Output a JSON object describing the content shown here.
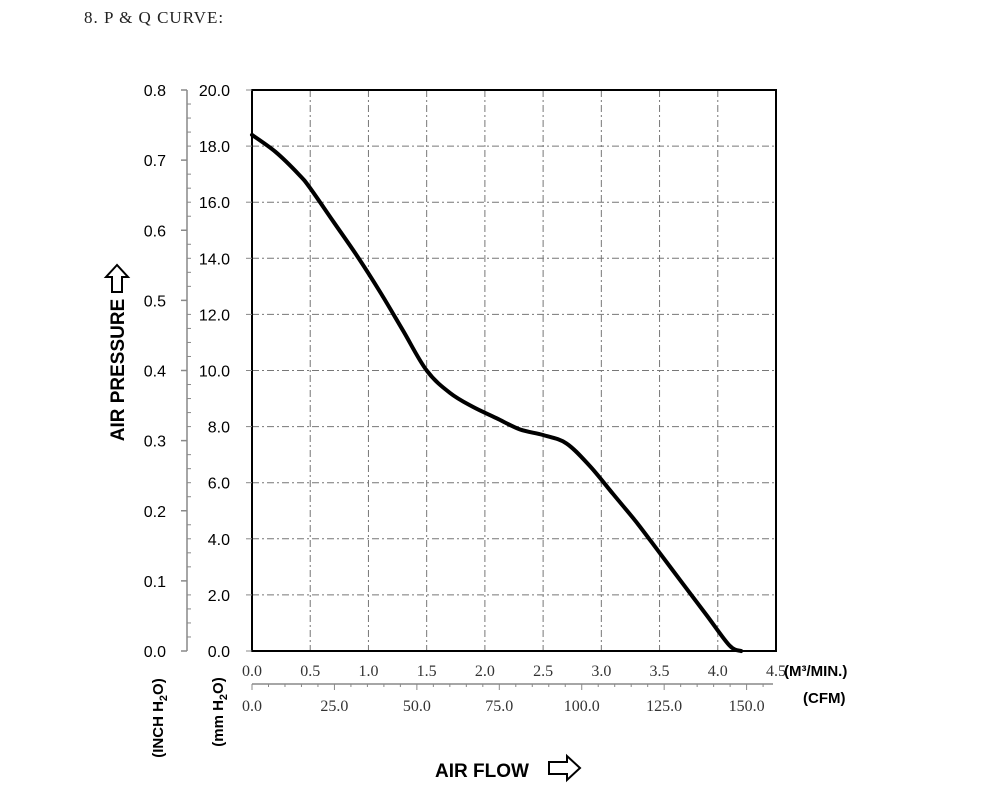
{
  "section_title": "8. P & Q CURVE:",
  "chart_data": {
    "type": "line",
    "x_label": "AIR FLOW",
    "x_unit_primary": "(M³/MIN.)",
    "x_unit_secondary": "(CFM)",
    "y_label": "AIR PRESSURE",
    "y_unit_primary": "(mm H2O)",
    "y_unit_secondary": "(INCH H2O)",
    "xlim": [
      0,
      4.5
    ],
    "ylim": [
      0,
      20
    ],
    "grid": true,
    "x_ticks": [
      "0.0",
      "0.5",
      "1.0",
      "1.5",
      "2.0",
      "2.5",
      "3.0",
      "3.5",
      "4.0",
      "4.5"
    ],
    "x2_ticks": [
      "0.0",
      "25.0",
      "50.0",
      "75.0",
      "100.0",
      "125.0",
      "150.0"
    ],
    "y_ticks": [
      "0.0",
      "2.0",
      "4.0",
      "6.0",
      "8.0",
      "10.0",
      "12.0",
      "14.0",
      "16.0",
      "18.0",
      "20.0"
    ],
    "y2_ticks": [
      "0.0",
      "0.1",
      "0.2",
      "0.3",
      "0.4",
      "0.5",
      "0.6",
      "0.7",
      "0.8"
    ],
    "series": [
      {
        "x": [
          0.0,
          0.2,
          0.4,
          0.5,
          0.7,
          0.9,
          1.1,
          1.3,
          1.5,
          1.7,
          1.9,
          2.1,
          2.3,
          2.5,
          2.7,
          2.9,
          3.1,
          3.3,
          3.5,
          3.7,
          3.9,
          4.1,
          4.2
        ],
        "y": [
          18.4,
          17.8,
          17.0,
          16.5,
          15.3,
          14.1,
          12.8,
          11.4,
          10.0,
          9.2,
          8.7,
          8.3,
          7.9,
          7.7,
          7.4,
          6.6,
          5.6,
          4.6,
          3.5,
          2.4,
          1.3,
          0.2,
          0.0
        ]
      }
    ]
  }
}
